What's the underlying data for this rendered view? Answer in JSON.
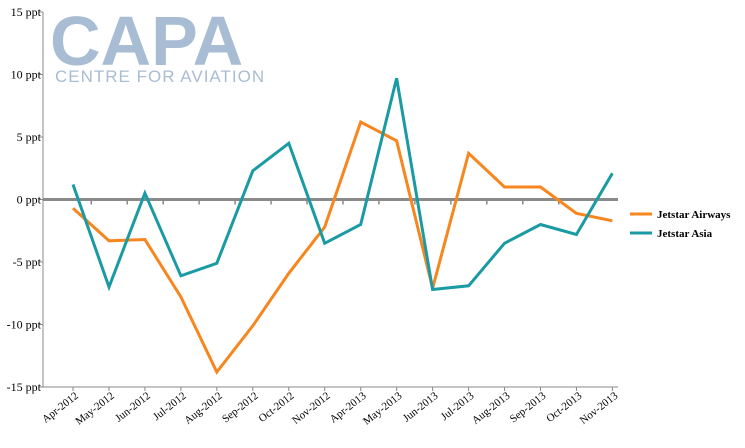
{
  "watermark": {
    "logo_text": "CAPA",
    "subtitle": "CENTRE FOR AVIATION",
    "color": "#9fb6cf"
  },
  "chart_data": {
    "type": "line",
    "title": "",
    "xlabel": "",
    "ylabel": "",
    "ylim": [
      -15,
      15
    ],
    "y_ticks": [
      -15,
      -10,
      -5,
      0,
      5,
      10,
      15
    ],
    "y_tick_labels": [
      "-15 ppt",
      "-10 ppt",
      "-5 ppt",
      "0 ppt",
      "5 ppt",
      "10 ppt",
      "15 ppt"
    ],
    "categories": [
      "Apr-2012",
      "May-2012",
      "Jun-2012",
      "Jul-2012",
      "Aug-2012",
      "Sep-2012",
      "Oct-2012",
      "Nov-2012",
      "Apr-2013",
      "May-2013",
      "Jun-2013",
      "Jul-2013",
      "Aug-2013",
      "Sep-2013",
      "Oct-2013",
      "Nov-2013"
    ],
    "grid": false,
    "legend_position": "right",
    "series": [
      {
        "name": "Jetstar Airways",
        "color": "#f7861e",
        "values": [
          -0.7,
          -3.3,
          -3.2,
          -7.8,
          -13.8,
          -10.1,
          -5.9,
          -2.2,
          6.2,
          4.7,
          -7.1,
          3.7,
          1.0,
          1.0,
          -1.1,
          -1.7
        ]
      },
      {
        "name": "Jetstar Asia",
        "color": "#1a9aa3",
        "values": [
          1.2,
          -7.0,
          0.5,
          -6.1,
          -5.1,
          2.3,
          4.5,
          -3.5,
          -2.0,
          9.7,
          -7.2,
          -6.9,
          -3.5,
          -2.0,
          -2.8,
          2.1
        ]
      }
    ]
  }
}
